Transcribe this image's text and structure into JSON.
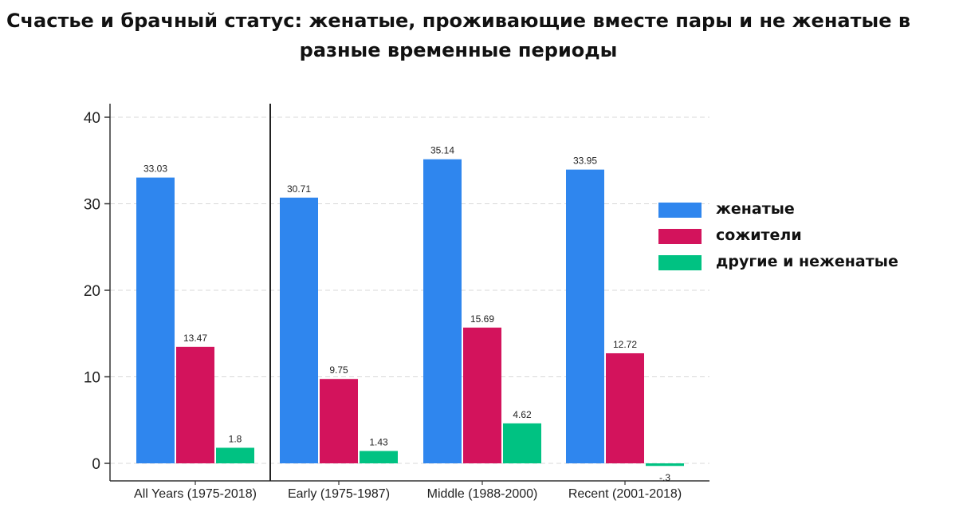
{
  "title": "Счастье и брачный статус: женатые, проживающие вместе пары и не женатые в разные временные периоды",
  "colors": {
    "married": "#2f86ee",
    "cohabiting": "#d3135c",
    "other": "#00c282",
    "axis": "#333333",
    "grid": "#d8d8d8"
  },
  "chart_data": {
    "type": "bar",
    "title": "Счастье и брачный статус: женатые, проживающие вместе пары и не женатые в разные временные периоды",
    "categories": [
      "All Years (1975-2018)",
      "Early (1975-1987)",
      "Middle (1988-2000)",
      "Recent (2001-2018)"
    ],
    "series": [
      {
        "name": "женатые",
        "values": [
          33.03,
          30.71,
          35.14,
          33.95
        ],
        "labels": [
          "33.03",
          "30.71",
          "35.14",
          "33.95"
        ]
      },
      {
        "name": "сожители",
        "values": [
          13.47,
          9.75,
          15.69,
          12.72
        ],
        "labels": [
          "13.47",
          "9.75",
          "15.69",
          "12.72"
        ]
      },
      {
        "name": "другие и неженатые",
        "values": [
          1.8,
          1.43,
          4.62,
          -0.3
        ],
        "labels": [
          "1.8",
          "1.43",
          "4.62",
          "-.3"
        ]
      }
    ],
    "yticks": [
      "0",
      "10",
      "20",
      "30",
      "40"
    ],
    "ylim": [
      -2,
      41
    ],
    "grid": true,
    "legend_position": "right"
  }
}
